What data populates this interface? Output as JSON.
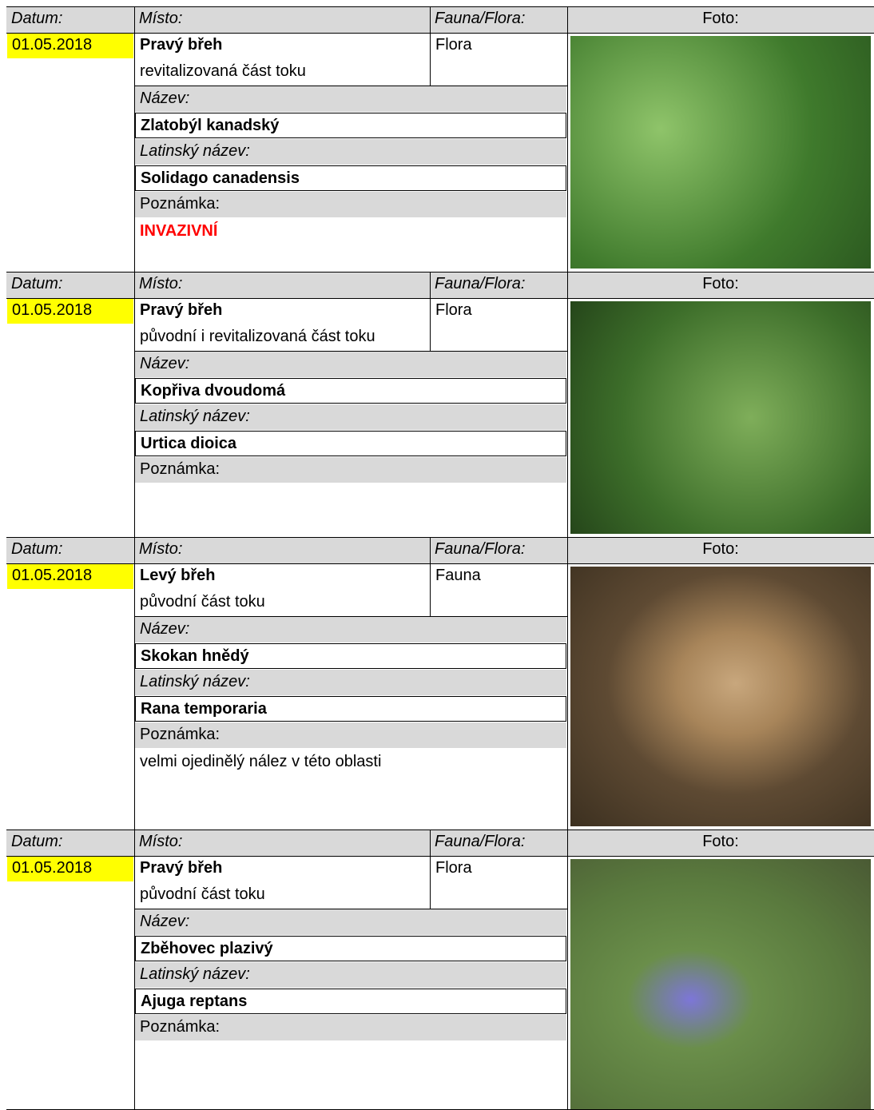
{
  "records": [
    {
      "labels": {
        "date": "Datum:",
        "place": "Místo:",
        "type": "Fauna/Flora:",
        "photo": "Foto:",
        "name": "Název:",
        "latin": "Latinský název:",
        "note": "Poznámka:"
      },
      "date": "01.05.2018",
      "place": "Pravý břeh",
      "place_detail": "revitalizovaná část toku",
      "type": "Flora",
      "name": "Zlatobýl kanadský",
      "latin": "Solidago canadensis",
      "note": "INVAZIVNÍ",
      "note_color": "#ff0000"
    },
    {
      "labels": {
        "date": "Datum:",
        "place": "Místo:",
        "type": "Fauna/Flora:",
        "photo": "Foto:",
        "name": "Název:",
        "latin": "Latinský název:",
        "note": "Poznámka:"
      },
      "date": "01.05.2018",
      "place": "Pravý břeh",
      "place_detail": "původní i revitalizovaná část toku",
      "type": "Flora",
      "name": "Kopřiva  dvoudomá",
      "latin": "Urtica dioica"
    },
    {
      "labels": {
        "date": "Datum:",
        "place": "Místo:",
        "type": "Fauna/Flora:",
        "photo": "Foto:",
        "name": "Název:",
        "latin": "Latinský název:",
        "note": "Poznámka:"
      },
      "date": "01.05.2018",
      "place": "Levý břeh",
      "place_detail": "původní část toku",
      "type": "Fauna",
      "name": "Skokan hnědý",
      "latin": "Rana temporaria",
      "note": "velmi ojedinělý nález v této oblasti"
    },
    {
      "labels": {
        "date": "Datum:",
        "place": "Místo:",
        "type": "Fauna/Flora:",
        "photo": "Foto:",
        "name": "Název:",
        "latin": "Latinský název:",
        "note": "Poznámka:"
      },
      "date": "01.05.2018",
      "place": "Pravý břeh",
      "place_detail": "původní část toku",
      "type": "Flora",
      "name": "Zběhovec plazivý",
      "latin": "Ajuga reptans"
    }
  ]
}
